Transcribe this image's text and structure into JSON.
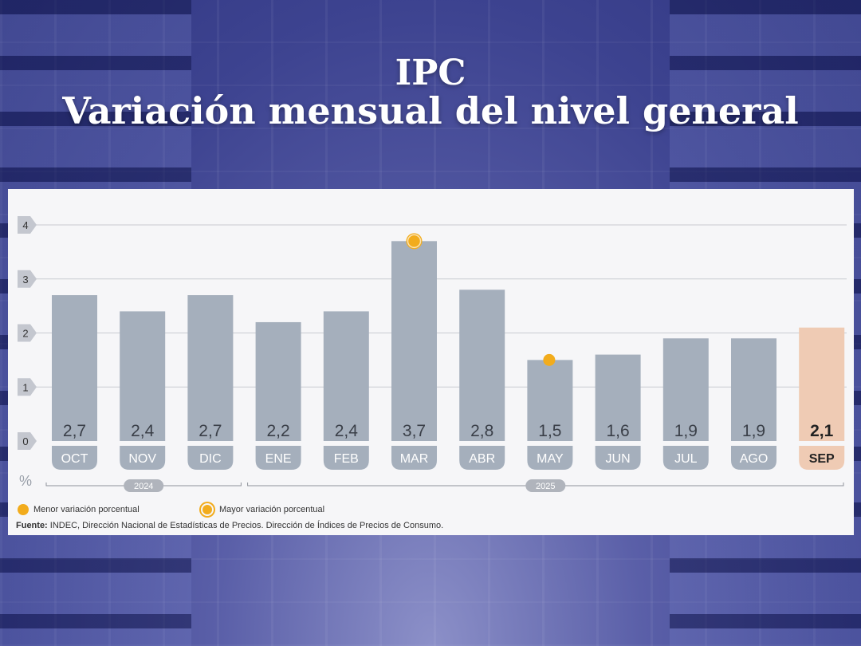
{
  "title_line1": "IPC",
  "title_line2": "Variación mensual del nivel general",
  "legend": {
    "min_label": "Menor variación porcentual",
    "max_label": "Mayor variación porcentual"
  },
  "source": {
    "label": "Fuente:",
    "text": "INDEC, Dirección Nacional de Estadísticas de Precios. Dirección de Índices de Precios de Consumo."
  },
  "colors": {
    "bar": "#a5afbc",
    "bar_highlight": "#efcbb4",
    "marker": "#f2ac1d"
  },
  "chart_data": {
    "type": "bar",
    "categories": [
      "OCT",
      "NOV",
      "DIC",
      "ENE",
      "FEB",
      "MAR",
      "ABR",
      "MAY",
      "JUN",
      "JUL",
      "AGO",
      "SEP"
    ],
    "values": [
      2.7,
      2.4,
      2.7,
      2.2,
      2.4,
      3.7,
      2.8,
      1.5,
      1.6,
      1.9,
      1.9,
      2.1
    ],
    "value_labels": [
      "2,7",
      "2,4",
      "2,7",
      "2,2",
      "2,4",
      "3,7",
      "2,8",
      "1,5",
      "1,6",
      "1,9",
      "1,9",
      "2,1"
    ],
    "ylim": [
      0,
      4
    ],
    "yticks": [
      0,
      1,
      2,
      3,
      4
    ],
    "ylabel": "%",
    "grid": true,
    "highlight_category": "SEP",
    "min_marker_category": "MAY",
    "max_marker_category": "MAR",
    "year_groups": [
      {
        "label": "2024",
        "categories": [
          "OCT",
          "NOV",
          "DIC"
        ]
      },
      {
        "label": "2025",
        "categories": [
          "ENE",
          "FEB",
          "MAR",
          "ABR",
          "MAY",
          "JUN",
          "JUL",
          "AGO",
          "SEP"
        ]
      }
    ]
  }
}
